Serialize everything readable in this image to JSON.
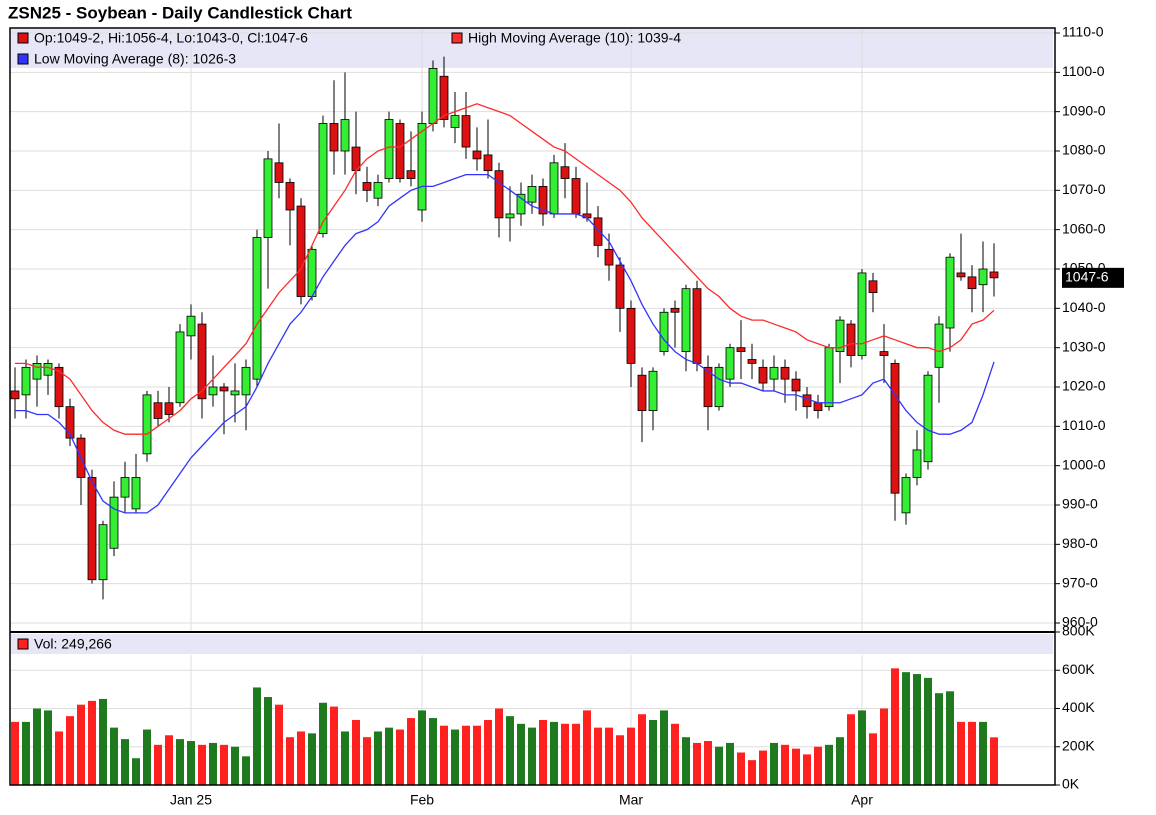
{
  "chart_data": [
    {
      "type": "candlestick",
      "title": "ZSN25 - Soybean - Daily Candlestick Chart",
      "ohlc_label": "Op:1049-2, Hi:1056-4, Lo:1043-0, Cl:1047-6",
      "last_label": "1047-6",
      "up_color": "#33ee33",
      "down_color": "#dd1111",
      "categories": [
        null,
        null,
        null,
        null,
        null,
        null,
        null,
        null,
        null,
        null,
        null,
        null,
        null,
        null,
        null,
        null,
        "Jan 25",
        null,
        null,
        null,
        null,
        null,
        null,
        null,
        null,
        null,
        null,
        null,
        null,
        null,
        null,
        null,
        null,
        null,
        null,
        null,
        null,
        "Feb",
        null,
        null,
        null,
        null,
        null,
        null,
        null,
        null,
        null,
        null,
        null,
        null,
        null,
        null,
        null,
        null,
        null,
        null,
        "Mar",
        null,
        null,
        null,
        null,
        null,
        null,
        null,
        null,
        null,
        null,
        null,
        null,
        null,
        null,
        null,
        null,
        null,
        null,
        null,
        null,
        "Apr",
        null,
        null,
        null,
        null,
        null,
        null,
        null,
        null,
        null,
        null,
        null,
        null
      ],
      "open": [
        1019,
        1018,
        1022,
        1023,
        1025,
        1015,
        1007,
        997,
        971,
        979,
        992,
        989,
        1003,
        1016,
        1016,
        1016,
        1033,
        1036,
        1018,
        1020,
        1018,
        1018,
        1022,
        1058,
        1077,
        1072,
        1066,
        1043,
        1059,
        1087,
        1080,
        1081,
        1072,
        1068,
        1073,
        1087,
        1075,
        1065,
        1087,
        1099,
        1086,
        1089,
        1080,
        1079,
        1075,
        1063,
        1064,
        1067,
        1071,
        1064,
        1076,
        1073,
        1064,
        1063,
        1055,
        1051,
        1040,
        1023,
        1014,
        1029,
        1040,
        1029,
        1045,
        1025,
        1015,
        1022,
        1030,
        1027,
        1025,
        1022,
        1025,
        1022,
        1018,
        1016,
        1015,
        1029,
        1036,
        1028,
        1047,
        1029,
        1026,
        988,
        997,
        1001,
        1025,
        1035,
        1049,
        1048,
        1046,
        1049.25
      ],
      "high": [
        1025,
        1027,
        1028,
        1027,
        1026,
        1017,
        1008,
        999,
        986,
        996,
        1001,
        1003,
        1019,
        1019,
        1020,
        1036,
        1041,
        1039,
        1028,
        1021,
        1026,
        1027,
        1060,
        1080,
        1087,
        1073,
        1068,
        1056,
        1089,
        1098,
        1100,
        1090,
        1076,
        1074,
        1090,
        1088,
        1085,
        1090,
        1103,
        1104,
        1095,
        1095,
        1086,
        1088,
        1077,
        1071,
        1072,
        1074,
        1073,
        1079,
        1082,
        1076,
        1072,
        1066,
        1059,
        1053,
        1042,
        1025,
        1025,
        1040,
        1042,
        1046,
        1047,
        1028,
        1026,
        1031,
        1037,
        1031,
        1027,
        1028,
        1027,
        1024,
        1020,
        1018,
        1031,
        1038,
        1037,
        1050,
        1049,
        1036,
        1027,
        998,
        1009,
        1024,
        1038,
        1054,
        1059,
        1051,
        1057,
        1056.5
      ],
      "low": [
        1012,
        1012,
        1015,
        1018,
        1012,
        1005,
        990,
        970,
        966,
        977,
        988,
        988,
        1001,
        1010,
        1011,
        1015,
        1027,
        1012,
        1015,
        1008,
        1011,
        1009,
        1020,
        1045,
        1068,
        1056,
        1041,
        1042,
        1058,
        1074,
        1074,
        1069,
        1067,
        1066,
        1072,
        1072,
        1071,
        1062,
        1085,
        1086,
        1082,
        1078,
        1075,
        1073,
        1058,
        1057,
        1061,
        1064,
        1061,
        1063,
        1068,
        1063,
        1062,
        1053,
        1047,
        1034,
        1020,
        1006,
        1009,
        1028,
        1030,
        1024,
        1024,
        1009,
        1014,
        1020,
        1022,
        1022,
        1019,
        1019,
        1016,
        1014,
        1012,
        1012,
        1014,
        1021,
        1025,
        1027,
        1039,
        1021,
        986,
        985,
        995,
        999,
        1016,
        1029,
        1047,
        1039,
        1039,
        1043
      ],
      "close": [
        1017,
        1025,
        1026,
        1026,
        1015,
        1007,
        997,
        971,
        985,
        992,
        997,
        997,
        1018,
        1012,
        1013,
        1034,
        1038,
        1017,
        1020,
        1019,
        1019,
        1025,
        1058,
        1078,
        1072,
        1065,
        1043,
        1055,
        1087,
        1080,
        1088,
        1075,
        1070,
        1072,
        1088,
        1073,
        1073,
        1087,
        1101,
        1088,
        1089,
        1081,
        1078,
        1075,
        1063,
        1064,
        1069,
        1071,
        1064,
        1077,
        1073,
        1064,
        1063,
        1056,
        1051,
        1040,
        1026,
        1014,
        1024,
        1039,
        1039,
        1045,
        1026,
        1015,
        1025,
        1030,
        1029,
        1026,
        1021,
        1025,
        1022,
        1019,
        1015,
        1014,
        1030,
        1037,
        1028,
        1049,
        1044,
        1028,
        993,
        997,
        1004,
        1023,
        1036,
        1053,
        1048,
        1045,
        1050,
        1047.75
      ],
      "series": [
        {
          "name": "High Moving Average (10): 1039-4",
          "color": "#ff2a2a",
          "values": [
            1026,
            1026,
            1025,
            1025,
            1024,
            1022,
            1018,
            1014,
            1011,
            1009,
            1008,
            1008,
            1008,
            1010,
            1012,
            1014,
            1017,
            1019,
            1022,
            1025,
            1028,
            1031,
            1036,
            1040,
            1044,
            1047,
            1050,
            1056,
            1062,
            1066,
            1070,
            1075,
            1078,
            1080,
            1081,
            1081,
            1083,
            1085,
            1087,
            1089,
            1090,
            1091,
            1092,
            1091,
            1090,
            1089,
            1087,
            1085,
            1083,
            1081,
            1080,
            1078,
            1076,
            1074,
            1072,
            1070,
            1067,
            1063,
            1060,
            1057,
            1054,
            1051,
            1048,
            1045,
            1043,
            1040,
            1038,
            1037,
            1037,
            1036,
            1035,
            1034,
            1032,
            1031,
            1030,
            1030,
            1031,
            1031,
            1032,
            1033,
            1032,
            1031,
            1030,
            1030,
            1029,
            1030,
            1032,
            1036,
            1037,
            1039.5
          ]
        },
        {
          "name": "Low Moving Average (8): 1026-3",
          "color": "#3333ff",
          "values": [
            1014,
            1014,
            1013,
            1013,
            1011,
            1008,
            1002,
            996,
            991,
            989,
            988,
            988,
            988,
            990,
            994,
            998,
            1002,
            1005,
            1008,
            1011,
            1013,
            1015,
            1020,
            1026,
            1031,
            1036,
            1039,
            1043,
            1048,
            1052,
            1056,
            1059,
            1060,
            1062,
            1066,
            1068,
            1070,
            1071,
            1071,
            1072,
            1073,
            1074,
            1074,
            1074,
            1072,
            1070,
            1068,
            1066,
            1065,
            1064,
            1064,
            1064,
            1063,
            1060,
            1057,
            1052,
            1047,
            1041,
            1036,
            1032,
            1029,
            1027,
            1026,
            1024,
            1022,
            1021,
            1021,
            1020,
            1019,
            1019,
            1018,
            1018,
            1017,
            1016,
            1016,
            1016,
            1017,
            1018,
            1021,
            1022,
            1018,
            1014,
            1011,
            1009,
            1008,
            1008,
            1009,
            1011,
            1018,
            1026.375
          ]
        }
      ],
      "ylim": [
        960,
        1110
      ],
      "yticks": [
        {
          "value": 960,
          "label": "960-0"
        },
        {
          "value": 970,
          "label": "970-0"
        },
        {
          "value": 980,
          "label": "980-0"
        },
        {
          "value": 990,
          "label": "990-0"
        },
        {
          "value": 1000,
          "label": "1000-0"
        },
        {
          "value": 1010,
          "label": "1010-0"
        },
        {
          "value": 1020,
          "label": "1020-0"
        },
        {
          "value": 1030,
          "label": "1030-0"
        },
        {
          "value": 1040,
          "label": "1040-0"
        },
        {
          "value": 1050,
          "label": "1050-0"
        },
        {
          "value": 1060,
          "label": "1060-0"
        },
        {
          "value": 1070,
          "label": "1070-0"
        },
        {
          "value": 1080,
          "label": "1080-0"
        },
        {
          "value": 1090,
          "label": "1090-0"
        },
        {
          "value": 1100,
          "label": "1100-0"
        },
        {
          "value": 1110,
          "label": "1110-0"
        }
      ],
      "grid": true
    },
    {
      "type": "bar",
      "legend": "Vol: 249,266",
      "up_color": "#1f7a1f",
      "down_color": "#ff2020",
      "values": [
        330000,
        330000,
        400000,
        390000,
        280000,
        360000,
        420000,
        440000,
        450000,
        300000,
        240000,
        140000,
        290000,
        210000,
        260000,
        240000,
        230000,
        210000,
        220000,
        210000,
        200000,
        150000,
        510000,
        460000,
        420000,
        250000,
        280000,
        270000,
        430000,
        410000,
        280000,
        340000,
        250000,
        280000,
        300000,
        290000,
        350000,
        390000,
        350000,
        310000,
        290000,
        310000,
        310000,
        340000,
        400000,
        360000,
        320000,
        300000,
        340000,
        330000,
        320000,
        320000,
        390000,
        300000,
        300000,
        260000,
        300000,
        370000,
        340000,
        390000,
        320000,
        250000,
        220000,
        230000,
        200000,
        220000,
        170000,
        130000,
        180000,
        220000,
        210000,
        190000,
        160000,
        200000,
        210000,
        250000,
        370000,
        390000,
        270000,
        400000,
        610000,
        590000,
        580000,
        560000,
        480000,
        490000,
        330000,
        330000,
        330000,
        249266
      ],
      "ylim": [
        0,
        800000
      ],
      "yticks": [
        {
          "value": 0,
          "label": "0K"
        },
        {
          "value": 200000,
          "label": "200K"
        },
        {
          "value": 400000,
          "label": "400K"
        },
        {
          "value": 600000,
          "label": "600K"
        },
        {
          "value": 800000,
          "label": "800K"
        }
      ],
      "grid": true
    }
  ]
}
